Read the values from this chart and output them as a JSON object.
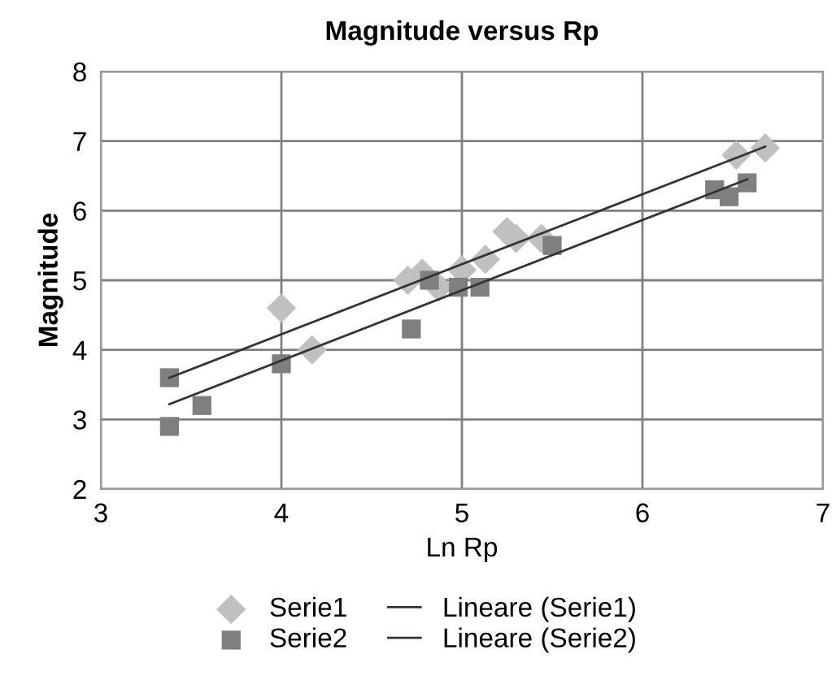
{
  "chart_data": {
    "type": "scatter",
    "title": "Magnitude versus Rp",
    "xlabel": "Ln Rp",
    "ylabel": "Magnitude",
    "xlim": [
      3,
      7
    ],
    "xticks": [
      3,
      4,
      5,
      6,
      7
    ],
    "ylim": [
      2,
      8
    ],
    "yticks": [
      2,
      3,
      4,
      5,
      6,
      7,
      8
    ],
    "grid": true,
    "legend": "bottom",
    "series": [
      {
        "name": "Serie1",
        "color": "#c0c0c0",
        "marker": "diamond",
        "x": [
          4.0,
          4.17,
          4.7,
          4.78,
          4.87,
          5.0,
          5.13,
          5.25,
          5.3,
          5.44,
          6.52,
          6.68
        ],
        "values": [
          4.6,
          4.0,
          5.0,
          5.1,
          4.9,
          5.15,
          5.3,
          5.7,
          5.6,
          5.6,
          6.8,
          6.9
        ]
      },
      {
        "name": "Serie2",
        "color": "#7f7f7f",
        "marker": "square",
        "x": [
          3.38,
          3.38,
          3.56,
          4.0,
          4.72,
          4.82,
          4.98,
          5.1,
          5.5,
          6.4,
          6.48,
          6.58
        ],
        "values": [
          3.6,
          2.9,
          3.2,
          3.8,
          4.3,
          5.0,
          4.9,
          4.9,
          5.5,
          6.3,
          6.2,
          6.4
        ]
      },
      {
        "name": "Lineare (Serie1)",
        "type": "line",
        "color": "#333333",
        "marker": "none",
        "x": [
          3.38,
          6.68
        ],
        "values": [
          3.6,
          6.92
        ]
      },
      {
        "name": "Lineare (Serie2)",
        "type": "line",
        "color": "#333333",
        "marker": "none",
        "x": [
          3.38,
          6.58
        ],
        "values": [
          3.22,
          6.45
        ]
      }
    ]
  }
}
